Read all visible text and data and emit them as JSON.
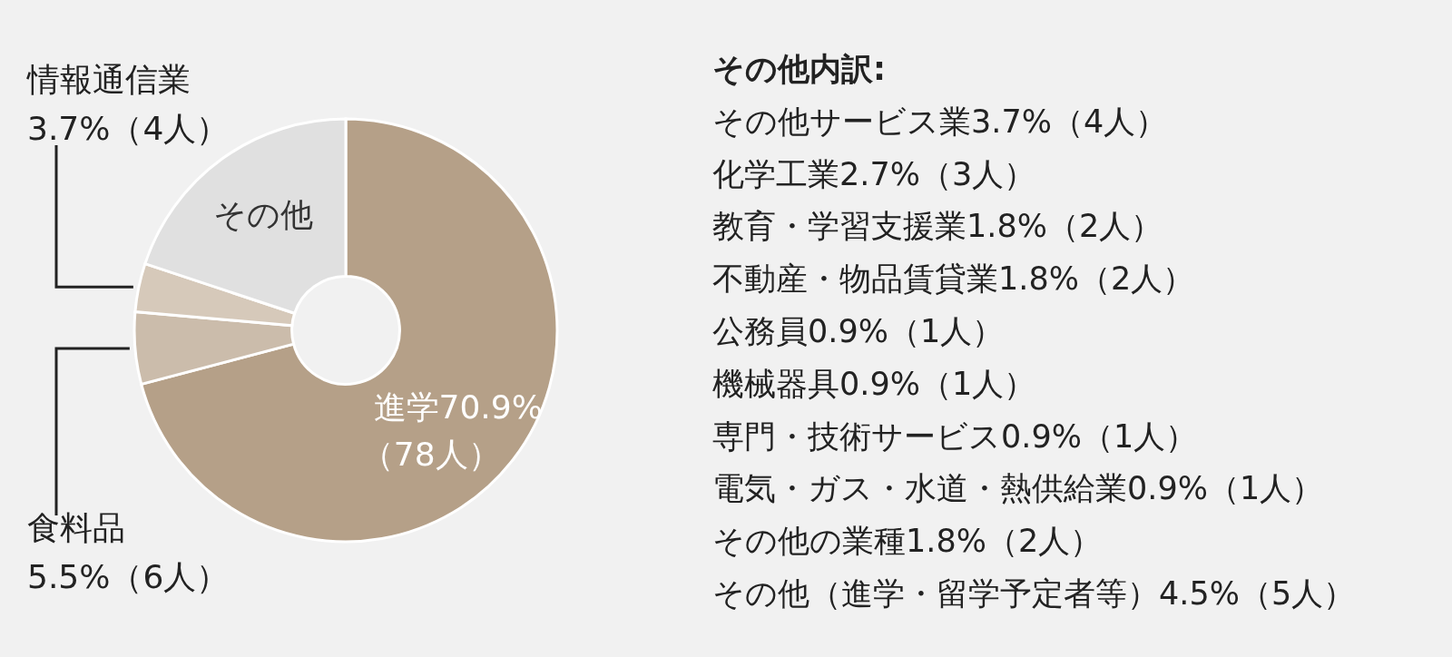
{
  "chart_data": {
    "type": "donut",
    "categories": [
      "進学",
      "食料品",
      "情報通信業",
      "その他"
    ],
    "values": [
      70.9,
      5.5,
      3.7,
      19.9
    ],
    "colors": [
      "#b5a088",
      "#cbbcab",
      "#d6c9ba",
      "#e0e0e0"
    ],
    "value_labels": [
      "70.9%（78人）",
      "5.5%（6人）",
      "3.7%（4人）",
      null
    ],
    "annotations": [
      "その他内訳:",
      "その他サービス業3.7%（4人）",
      "化学工業2.7%（3人）",
      "教育・学習支援業1.8%（2人）",
      "不動産・物品賃貸業1.8%（2人）",
      "公務員0.9%（1人）",
      "機械器具0.9%（1人）",
      "専門・技術サービス0.9%（1人）",
      "電気・ガス・水道・熱供給業0.9%（1人）",
      "その他の業種1.8%（2人）",
      "その他（進学・留学予定者等）4.5%（5人）"
    ]
  }
}
